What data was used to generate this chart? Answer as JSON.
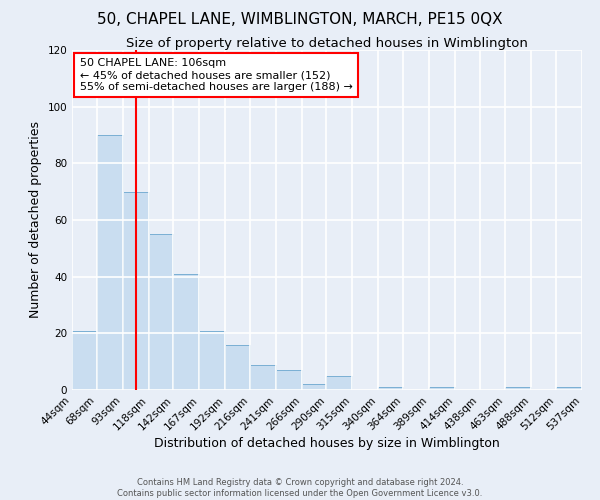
{
  "title": "50, CHAPEL LANE, WIMBLINGTON, MARCH, PE15 0QX",
  "subtitle": "Size of property relative to detached houses in Wimblington",
  "xlabel": "Distribution of detached houses by size in Wimblington",
  "ylabel": "Number of detached properties",
  "bin_edges": [
    44,
    68,
    93,
    118,
    142,
    167,
    192,
    216,
    241,
    266,
    290,
    315,
    340,
    364,
    389,
    414,
    438,
    463,
    488,
    512,
    537
  ],
  "bar_heights": [
    21,
    90,
    70,
    55,
    41,
    21,
    16,
    9,
    7,
    2,
    5,
    0,
    1,
    0,
    1,
    0,
    0,
    1,
    0,
    1
  ],
  "bar_color": "#c9ddf0",
  "bar_edge_color": "#7aafd4",
  "red_line_x": 106,
  "ylim": [
    0,
    120
  ],
  "yticks": [
    0,
    20,
    40,
    60,
    80,
    100,
    120
  ],
  "annotation_line1": "50 CHAPEL LANE: 106sqm",
  "annotation_line2": "← 45% of detached houses are smaller (152)",
  "annotation_line3": "55% of semi-detached houses are larger (188) →",
  "footer_line1": "Contains HM Land Registry data © Crown copyright and database right 2024.",
  "footer_line2": "Contains public sector information licensed under the Open Government Licence v3.0.",
  "background_color": "#e8eef7",
  "plot_background": "#e8eef7",
  "grid_color": "#ffffff",
  "title_fontsize": 11,
  "subtitle_fontsize": 9.5,
  "axis_label_fontsize": 9,
  "tick_fontsize": 7.5,
  "footer_fontsize": 6,
  "annot_fontsize": 8
}
